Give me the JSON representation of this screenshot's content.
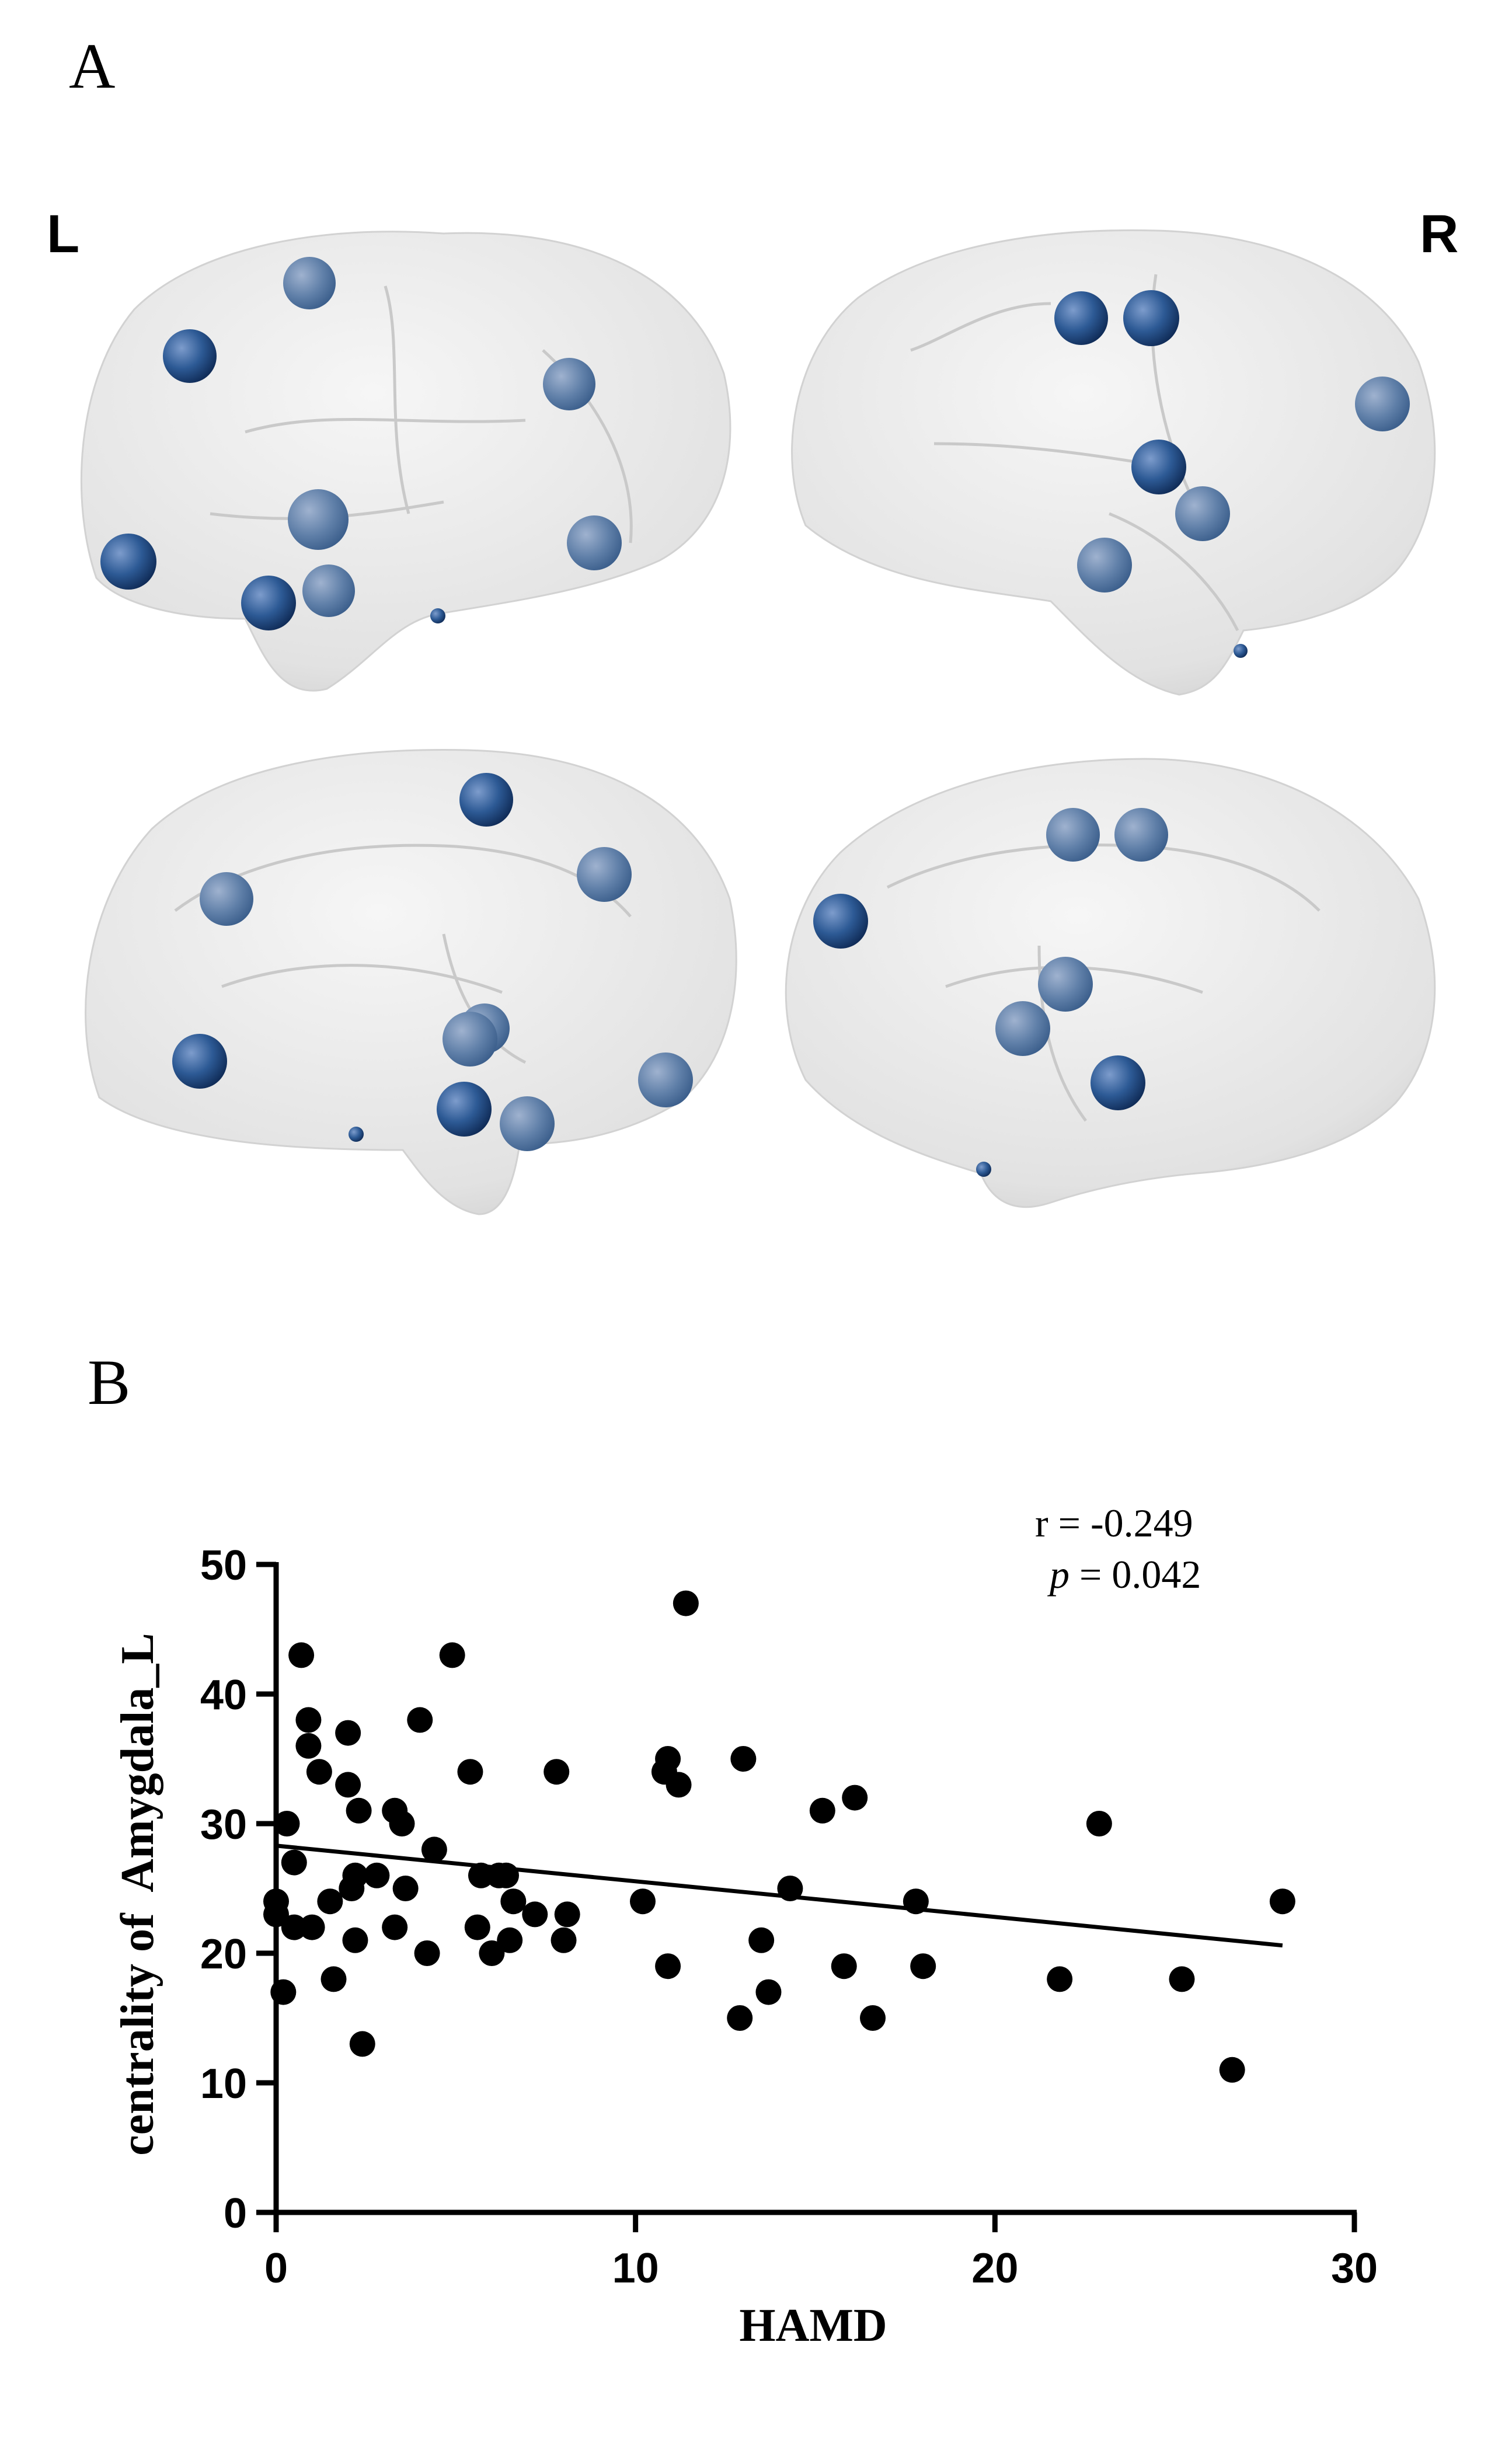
{
  "panel_a": {
    "label": "A",
    "left_label": "L",
    "right_label": "R",
    "node_color": "#1f4f8c",
    "brain_color": "#dedede"
  },
  "panel_b": {
    "label": "B"
  },
  "chart_data": {
    "type": "scatter",
    "xlabel": "HAMD",
    "ylabel": "centrality of  Amygdala_L",
    "xlim": [
      0,
      30
    ],
    "ylim": [
      0,
      50
    ],
    "xticks": [
      0,
      10,
      20,
      30
    ],
    "yticks": [
      0,
      10,
      20,
      30,
      40,
      50
    ],
    "stats": {
      "r_text": "r = -0.249",
      "p_symbol": "p",
      "p_text": " = 0.042"
    },
    "points_color": "#000000",
    "fit_line": {
      "x": [
        0,
        28
      ],
      "y": [
        28.3,
        20.6
      ]
    },
    "points": [
      [
        0,
        24
      ],
      [
        0,
        23
      ],
      [
        0.2,
        17
      ],
      [
        0.3,
        30
      ],
      [
        0.5,
        27
      ],
      [
        0.5,
        22
      ],
      [
        0.7,
        43
      ],
      [
        0.9,
        36
      ],
      [
        0.9,
        38
      ],
      [
        1,
        22
      ],
      [
        1.2,
        34
      ],
      [
        1.5,
        24
      ],
      [
        1.6,
        18
      ],
      [
        2,
        33
      ],
      [
        2,
        37
      ],
      [
        2.1,
        25
      ],
      [
        2.2,
        21
      ],
      [
        2.2,
        26
      ],
      [
        2.3,
        31
      ],
      [
        2.4,
        13
      ],
      [
        2.8,
        26
      ],
      [
        3.3,
        22
      ],
      [
        3.3,
        31
      ],
      [
        3.5,
        30
      ],
      [
        3.6,
        25
      ],
      [
        4,
        38
      ],
      [
        4.2,
        20
      ],
      [
        4.4,
        28
      ],
      [
        4.9,
        43
      ],
      [
        5.4,
        34
      ],
      [
        5.6,
        22
      ],
      [
        5.7,
        26
      ],
      [
        6,
        20
      ],
      [
        6.2,
        26
      ],
      [
        6.4,
        26
      ],
      [
        6.5,
        21
      ],
      [
        6.6,
        24
      ],
      [
        7.2,
        23
      ],
      [
        7.8,
        34
      ],
      [
        8,
        21
      ],
      [
        8.1,
        23
      ],
      [
        10.2,
        24
      ],
      [
        10.8,
        34
      ],
      [
        10.9,
        35
      ],
      [
        10.9,
        19
      ],
      [
        11.2,
        33
      ],
      [
        11.4,
        47
      ],
      [
        12.9,
        15
      ],
      [
        13,
        35
      ],
      [
        13.5,
        21
      ],
      [
        13.7,
        17
      ],
      [
        14.3,
        25
      ],
      [
        15.2,
        31
      ],
      [
        15.8,
        19
      ],
      [
        16.1,
        32
      ],
      [
        16.6,
        15
      ],
      [
        17.8,
        24
      ],
      [
        18,
        19
      ],
      [
        21.8,
        18
      ],
      [
        22.9,
        30
      ],
      [
        25.2,
        18
      ],
      [
        26.6,
        11
      ],
      [
        28,
        24
      ]
    ]
  }
}
